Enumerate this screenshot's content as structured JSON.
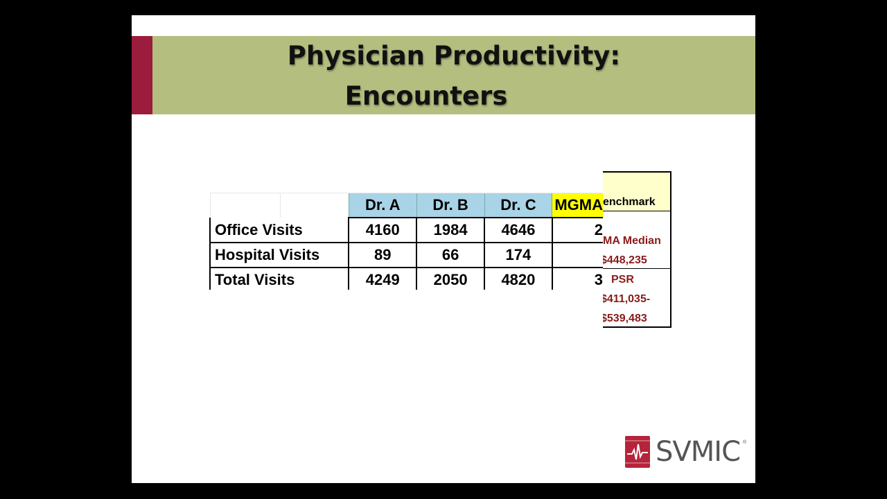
{
  "slide": {
    "title_line1": "Physician Productivity:",
    "title_line2": "Encounters"
  },
  "table": {
    "headers": [
      "Dr. A",
      "Dr. B",
      "Dr. C",
      "MGMA"
    ],
    "rows": [
      {
        "label": "Office Visits",
        "values": [
          "4160",
          "1984",
          "4646",
          "2"
        ]
      },
      {
        "label": "Hospital Visits",
        "values": [
          "89",
          "66",
          "174",
          ""
        ]
      },
      {
        "label": "Total Visits",
        "values": [
          "4249",
          "2050",
          "4820",
          "3"
        ]
      }
    ]
  },
  "benchmark": {
    "header": "enchmark",
    "line1": "MA Median",
    "line2": "$448,235",
    "line3": "PSR",
    "line4": "$411,035-",
    "line5": "$539,483"
  },
  "logo": {
    "text": "SVMIC",
    "tm": "®"
  },
  "colors": {
    "title_bar": "#b3be7f",
    "accent": "#9b1c3c",
    "doctor_header": "#a9d3e6",
    "mgma_header": "#ffff00",
    "benchmark_header": "#ffffcc",
    "benchmark_text": "#8b1a1a"
  }
}
